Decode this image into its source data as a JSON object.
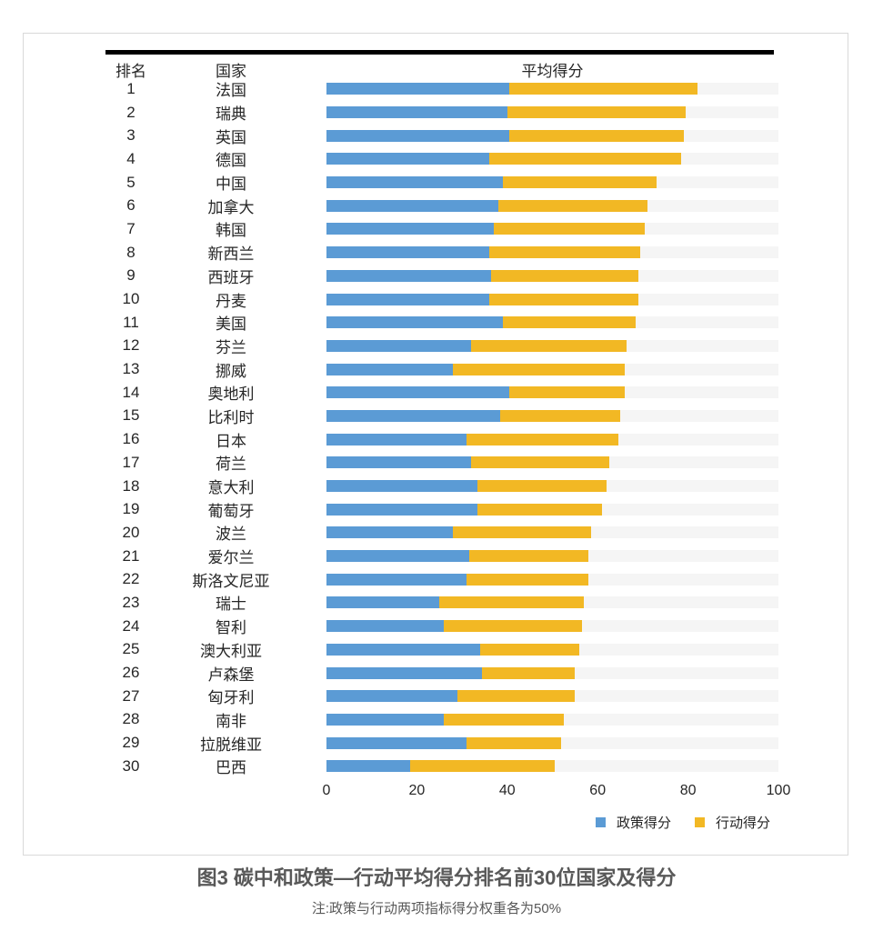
{
  "table": {
    "col_rank": "排名",
    "col_country": "国家",
    "col_score": "平均得分"
  },
  "legend": {
    "policy": "政策得分",
    "action": "行动得分"
  },
  "caption": {
    "title": "图3 碳中和政策—行动平均得分排名前30位国家及得分",
    "note": "注:政策与行动两项指标得分权重各为50%"
  },
  "chart_data": {
    "type": "bar",
    "orientation": "horizontal",
    "stacked": true,
    "title": "平均得分",
    "xlim": [
      0,
      100
    ],
    "x_ticks": [
      0,
      20,
      40,
      60,
      80,
      100
    ],
    "grid": false,
    "legend_position": "bottom-right",
    "series_names": [
      "政策得分",
      "行动得分"
    ],
    "colors": {
      "policy": "#5B9BD5",
      "action": "#F2B824",
      "track": "#F5F5F5"
    },
    "rows": [
      {
        "rank": 1,
        "country": "法国",
        "policy": 40.5,
        "action": 41.5,
        "total": 82.0
      },
      {
        "rank": 2,
        "country": "瑞典",
        "policy": 40.0,
        "action": 39.5,
        "total": 79.5
      },
      {
        "rank": 3,
        "country": "英国",
        "policy": 40.5,
        "action": 38.5,
        "total": 79.0
      },
      {
        "rank": 4,
        "country": "德国",
        "policy": 36.0,
        "action": 42.5,
        "total": 78.5
      },
      {
        "rank": 5,
        "country": "中国",
        "policy": 39.0,
        "action": 34.0,
        "total": 73.0
      },
      {
        "rank": 6,
        "country": "加拿大",
        "policy": 38.0,
        "action": 33.0,
        "total": 71.0
      },
      {
        "rank": 7,
        "country": "韩国",
        "policy": 37.0,
        "action": 33.5,
        "total": 70.5
      },
      {
        "rank": 8,
        "country": "新西兰",
        "policy": 36.0,
        "action": 33.5,
        "total": 69.5
      },
      {
        "rank": 9,
        "country": "西班牙",
        "policy": 36.5,
        "action": 32.5,
        "total": 69.0
      },
      {
        "rank": 10,
        "country": "丹麦",
        "policy": 36.0,
        "action": 33.0,
        "total": 69.0
      },
      {
        "rank": 11,
        "country": "美国",
        "policy": 39.0,
        "action": 29.5,
        "total": 68.5
      },
      {
        "rank": 12,
        "country": "芬兰",
        "policy": 32.0,
        "action": 34.5,
        "total": 66.5
      },
      {
        "rank": 13,
        "country": "挪威",
        "policy": 28.0,
        "action": 38.0,
        "total": 66.0
      },
      {
        "rank": 14,
        "country": "奥地利",
        "policy": 40.5,
        "action": 25.5,
        "total": 66.0
      },
      {
        "rank": 15,
        "country": "比利时",
        "policy": 38.5,
        "action": 26.5,
        "total": 65.0
      },
      {
        "rank": 16,
        "country": "日本",
        "policy": 31.0,
        "action": 33.5,
        "total": 64.5
      },
      {
        "rank": 17,
        "country": "荷兰",
        "policy": 32.0,
        "action": 30.5,
        "total": 62.5
      },
      {
        "rank": 18,
        "country": "意大利",
        "policy": 33.5,
        "action": 28.5,
        "total": 62.0
      },
      {
        "rank": 19,
        "country": "葡萄牙",
        "policy": 33.5,
        "action": 27.5,
        "total": 61.0
      },
      {
        "rank": 20,
        "country": "波兰",
        "policy": 28.0,
        "action": 30.5,
        "total": 58.5
      },
      {
        "rank": 21,
        "country": "爱尔兰",
        "policy": 31.5,
        "action": 26.5,
        "total": 58.0
      },
      {
        "rank": 22,
        "country": "斯洛文尼亚",
        "policy": 31.0,
        "action": 27.0,
        "total": 58.0
      },
      {
        "rank": 23,
        "country": "瑞士",
        "policy": 25.0,
        "action": 32.0,
        "total": 57.0
      },
      {
        "rank": 24,
        "country": "智利",
        "policy": 26.0,
        "action": 30.5,
        "total": 56.5
      },
      {
        "rank": 25,
        "country": "澳大利亚",
        "policy": 34.0,
        "action": 22.0,
        "total": 56.0
      },
      {
        "rank": 26,
        "country": "卢森堡",
        "policy": 34.5,
        "action": 20.5,
        "total": 55.0
      },
      {
        "rank": 27,
        "country": "匈牙利",
        "policy": 29.0,
        "action": 26.0,
        "total": 55.0
      },
      {
        "rank": 28,
        "country": "南非",
        "policy": 26.0,
        "action": 26.5,
        "total": 52.5
      },
      {
        "rank": 29,
        "country": "拉脱维亚",
        "policy": 31.0,
        "action": 21.0,
        "total": 52.0
      },
      {
        "rank": 30,
        "country": "巴西",
        "policy": 18.5,
        "action": 32.0,
        "total": 50.5
      }
    ]
  }
}
